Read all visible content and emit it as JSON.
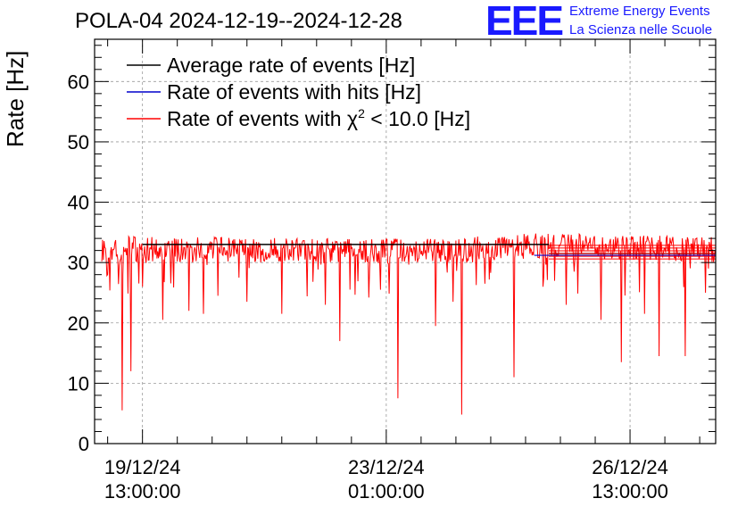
{
  "header": {
    "title": "POLA-04 2024-12-19--2024-12-28",
    "logo_text": "EEE",
    "logo_line1": "Extreme Energy Events",
    "logo_line2": "La Scienza nelle Scuole",
    "logo_color": "#1a1aff"
  },
  "chart_data": {
    "type": "line",
    "title": "POLA-04 2024-12-19--2024-12-28",
    "ylabel": "Rate [Hz]",
    "xlabel": "",
    "ylim": [
      0,
      67
    ],
    "xlim_hours": [
      -16.5,
      197.5
    ],
    "x_unit": "hours since 19/12/24 13:00:00",
    "y_ticks": [
      0,
      10,
      20,
      30,
      40,
      50,
      60
    ],
    "x_ticks": [
      {
        "hours": 0,
        "date": "19/12/24",
        "time": "13:00:00"
      },
      {
        "hours": 84,
        "date": "23/12/24",
        "time": "01:00:00"
      },
      {
        "hours": 168,
        "date": "26/12/24",
        "time": "13:00:00"
      }
    ],
    "grid": true,
    "legend": {
      "position": "top-left",
      "entries": [
        {
          "label": "Average rate of events [Hz]",
          "color": "#000000"
        },
        {
          "label": "Rate of events with hits [Hz]",
          "color": "#0000cc"
        },
        {
          "label_prefix": "Rate of events with ",
          "symbol": "χ",
          "sup": "2",
          "label_suffix": " < 10.0 [Hz]",
          "color": "#ff0000"
        }
      ]
    },
    "series": [
      {
        "name": "Rate of events with χ2 < 10.0 [Hz]",
        "color": "#ff0000",
        "profile_x_hours": [
          -14,
          0,
          40,
          80,
          110,
          125,
          140,
          160,
          180,
          197.5
        ],
        "profile_y": [
          32.3,
          32.2,
          32.0,
          31.9,
          32.0,
          32.6,
          32.8,
          32.6,
          32.4,
          32.1
        ],
        "band_lo": 29.5,
        "band_hi": 34.8,
        "dips": [
          {
            "x": -12,
            "y": 28.0
          },
          {
            "x": -7,
            "y": 5.5
          },
          {
            "x": -4,
            "y": 12.0
          },
          {
            "x": 0,
            "y": 26.0
          },
          {
            "x": 7,
            "y": 20.5
          },
          {
            "x": 16,
            "y": 22.0
          },
          {
            "x": 21,
            "y": 21.5
          },
          {
            "x": 26,
            "y": 24.5
          },
          {
            "x": 36,
            "y": 23.5
          },
          {
            "x": 48,
            "y": 21.5
          },
          {
            "x": 63,
            "y": 23.0
          },
          {
            "x": 68,
            "y": 17.0
          },
          {
            "x": 82,
            "y": 25.5
          },
          {
            "x": 88,
            "y": 7.5
          },
          {
            "x": 101,
            "y": 19.5
          },
          {
            "x": 107,
            "y": 23.5
          },
          {
            "x": 110,
            "y": 4.8
          },
          {
            "x": 118,
            "y": 26.5
          },
          {
            "x": 128,
            "y": 11.0
          },
          {
            "x": 138,
            "y": 26.0
          },
          {
            "x": 146,
            "y": 23.0
          },
          {
            "x": 158,
            "y": 20.5
          },
          {
            "x": 165,
            "y": 13.5
          },
          {
            "x": 173,
            "y": 21.5
          },
          {
            "x": 178,
            "y": 14.5
          },
          {
            "x": 187,
            "y": 14.5
          },
          {
            "x": 194,
            "y": 25.0
          }
        ]
      },
      {
        "name": "Average rate of events [Hz]",
        "color": "#000000",
        "segments": [
          {
            "x0": 0,
            "x1": 140,
            "y": 33.0
          },
          {
            "x0": 140,
            "x1": 197.5,
            "y": 31.5
          }
        ]
      },
      {
        "name": "Rate of events with hits [Hz]",
        "color": "#0000cc",
        "segments": [
          {
            "x0": 135,
            "x1": 197.5,
            "y": 31.2
          }
        ]
      }
    ]
  }
}
